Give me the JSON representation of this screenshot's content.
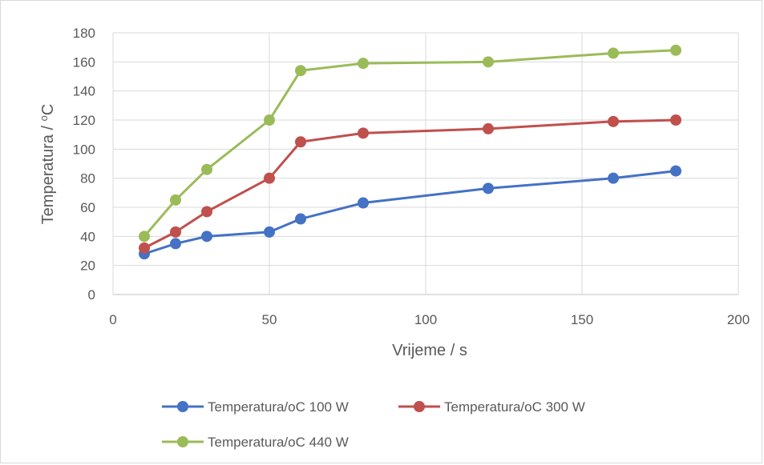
{
  "chart_data": {
    "type": "line",
    "title": "",
    "xlabel": "Vrijeme / s",
    "ylabel": "Temperatura / oC",
    "ylabel_main": "Temperatura / ",
    "ylabel_sup": "o",
    "ylabel_unit": "C",
    "xlim": [
      0,
      200
    ],
    "ylim": [
      0,
      180
    ],
    "xticks": [
      0,
      50,
      100,
      150,
      200
    ],
    "yticks": [
      0,
      20,
      40,
      60,
      80,
      100,
      120,
      140,
      160,
      180
    ],
    "grid": true,
    "legend_position": "bottom",
    "x": [
      10,
      20,
      30,
      50,
      60,
      80,
      120,
      160,
      180
    ],
    "series": [
      {
        "name": "Temperatura/oC 100 W",
        "color": "#4472c4",
        "values": [
          28,
          35,
          40,
          43,
          52,
          63,
          73,
          80,
          85
        ]
      },
      {
        "name": "Temperatura/oC 300 W",
        "color": "#c0504d",
        "values": [
          32,
          43,
          57,
          80,
          105,
          111,
          114,
          119,
          120
        ]
      },
      {
        "name": "Temperatura/oC 440 W",
        "color": "#9bbb59",
        "values": [
          40,
          65,
          86,
          120,
          154,
          159,
          160,
          166,
          168
        ]
      }
    ]
  }
}
